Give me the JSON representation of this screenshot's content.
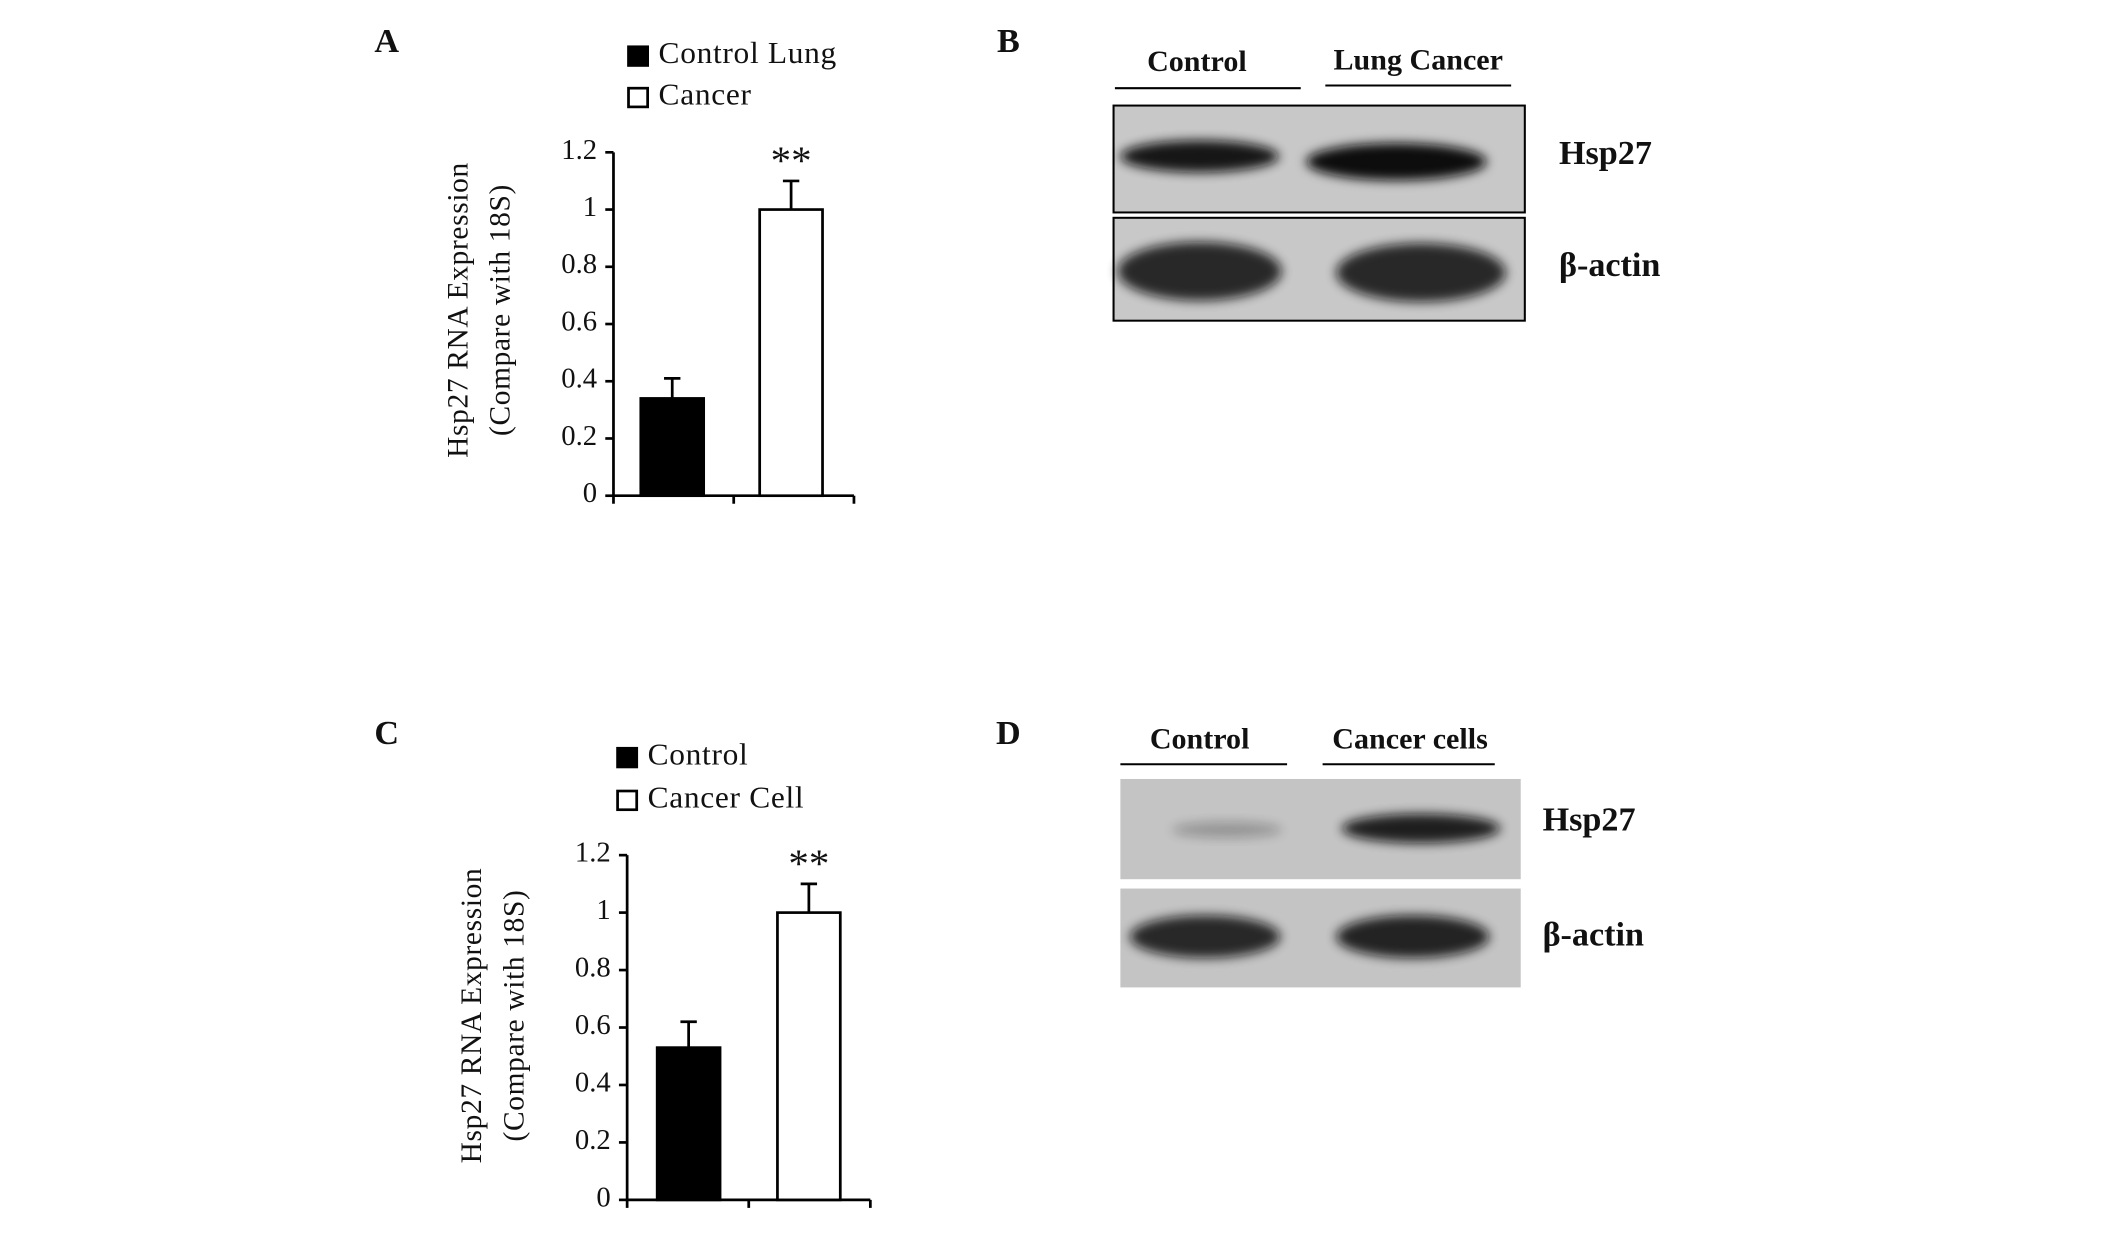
{
  "chart_data": [
    {
      "type": "bar",
      "panel": "A",
      "y_label": [
        "Hsp27 RNA Expression",
        "(Compare with 18S)"
      ],
      "categories": [
        null
      ],
      "series": [
        {
          "name": "Control Lung",
          "color": "#000000",
          "values": [
            0.34
          ],
          "errors": [
            0.07
          ]
        },
        {
          "name": "Cancer",
          "color": "#ffffff",
          "values": [
            1.0
          ],
          "errors": [
            0.1
          ]
        }
      ],
      "annotation": "**",
      "ylim": [
        0,
        1.2
      ],
      "yticks": [
        0,
        0.2,
        0.4,
        0.6,
        0.8,
        1,
        1.2
      ]
    },
    {
      "type": "bar",
      "panel": "C",
      "y_label": [
        "Hsp27 RNA Expression",
        "(Compare with 18S)"
      ],
      "categories": [
        null
      ],
      "series": [
        {
          "name": "Control",
          "color": "#000000",
          "values": [
            0.53
          ],
          "errors": [
            0.09
          ]
        },
        {
          "name": "Cancer Cell",
          "color": "#ffffff",
          "values": [
            1.0
          ],
          "errors": [
            0.1
          ]
        }
      ],
      "annotation": "**",
      "ylim": [
        0,
        1.2
      ],
      "yticks": [
        0,
        0.2,
        0.4,
        0.6,
        0.8,
        1,
        1.2
      ]
    }
  ],
  "blots": [
    {
      "panel": "B",
      "lanes": [
        "Control",
        "Lung Cancer"
      ],
      "bands": [
        "Hsp27",
        "β-actin"
      ]
    },
    {
      "panel": "D",
      "lanes": [
        "Control",
        "Cancer cells"
      ],
      "bands": [
        "Hsp27",
        "β-actin"
      ]
    }
  ]
}
